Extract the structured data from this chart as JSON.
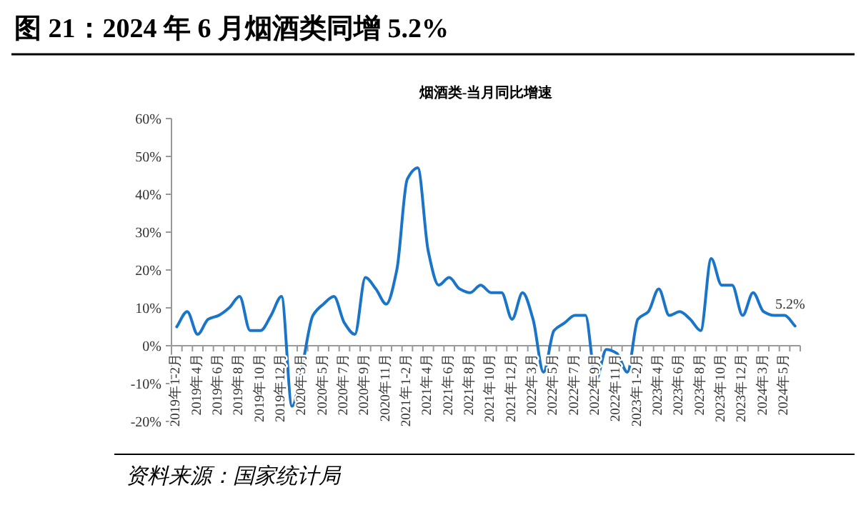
{
  "chart_data": {
    "type": "line",
    "title": "图 21：2024 年 6 月烟酒类同增 5.2%",
    "subtitle": "烟酒类-当月同比增速",
    "annotations": [
      "资料来源：国家统计局"
    ],
    "categories": [
      "2019年1-2月",
      null,
      "2019年4月",
      null,
      "2019年6月",
      null,
      "2019年8月",
      null,
      "2019年10月",
      null,
      "2019年12月",
      null,
      "2020年3月",
      null,
      "2020年5月",
      null,
      "2020年7月",
      null,
      "2020年9月",
      null,
      "2020年11月",
      null,
      "2021年1-2月",
      null,
      "2021年4月",
      null,
      "2021年6月",
      null,
      "2021年8月",
      null,
      "2021年10月",
      null,
      "2021年12月",
      null,
      "2022年3月",
      null,
      "2022年5月",
      null,
      "2022年7月",
      null,
      "2022年9月",
      null,
      "2022年11月",
      null,
      "2023年1-2月",
      null,
      "2023年4月",
      null,
      "2023年6月",
      null,
      "2023年8月",
      null,
      "2023年10月",
      null,
      "2023年12月",
      null,
      "2024年3月",
      null,
      "2024年5月",
      null
    ],
    "series": [
      {
        "color": "#1a75c9",
        "values": [
          5,
          9,
          3,
          7,
          8,
          10,
          13,
          4,
          4,
          8,
          13,
          -16,
          -5,
          8,
          11,
          13,
          6,
          3,
          18,
          15,
          11,
          20,
          44,
          47,
          25,
          16,
          18,
          15,
          14,
          16,
          14,
          14,
          7,
          14,
          7,
          -7,
          4,
          6,
          8,
          8,
          -9,
          -1,
          -2,
          -7,
          7,
          9,
          15,
          8,
          9,
          7,
          4,
          23,
          16,
          16,
          8,
          14,
          9,
          8,
          8,
          5.2
        ],
        "value_labels": [
          null,
          null,
          null,
          null,
          null,
          null,
          null,
          null,
          null,
          null,
          null,
          null,
          null,
          null,
          null,
          null,
          null,
          null,
          null,
          null,
          null,
          null,
          null,
          null,
          null,
          null,
          null,
          null,
          null,
          null,
          null,
          null,
          null,
          null,
          null,
          null,
          null,
          null,
          null,
          null,
          null,
          null,
          null,
          null,
          null,
          null,
          null,
          null,
          null,
          null,
          null,
          null,
          null,
          null,
          null,
          null,
          null,
          null,
          null,
          "5.2%"
        ]
      }
    ],
    "ylim": [
      -20,
      60
    ],
    "yticks": [
      {
        "value": -20,
        "label": "-20%"
      },
      {
        "value": -10,
        "label": "-10%"
      },
      {
        "value": 0,
        "label": "0%"
      },
      {
        "value": 10,
        "label": "10%"
      },
      {
        "value": 20,
        "label": "20%"
      },
      {
        "value": 30,
        "label": "30%"
      },
      {
        "value": 40,
        "label": "40%"
      },
      {
        "value": 50,
        "label": "50%"
      },
      {
        "value": 60,
        "label": "60%"
      }
    ]
  }
}
